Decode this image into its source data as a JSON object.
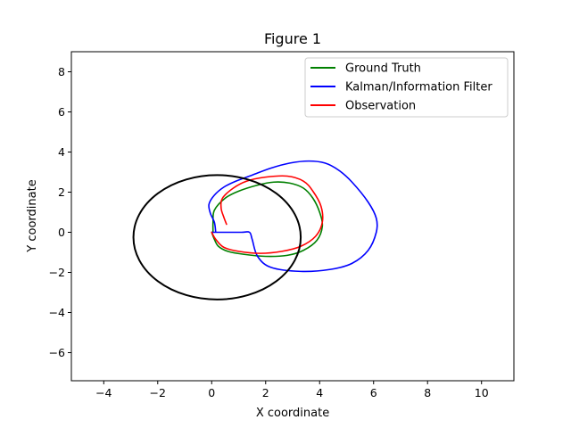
{
  "chart_data": {
    "type": "line",
    "title": "Figure 1",
    "xlabel": "X coordinate",
    "ylabel": "Y coordinate",
    "xlim": [
      -5.2,
      11.2
    ],
    "ylim": [
      -7.4,
      9.0
    ],
    "xticks": [
      -4,
      -2,
      0,
      2,
      4,
      6,
      8,
      10
    ],
    "yticks": [
      -6,
      -4,
      -2,
      0,
      2,
      4,
      6,
      8
    ],
    "grid": false,
    "legend_position": "top-right",
    "series": [
      {
        "name": "Ground Truth",
        "color": "#008000",
        "points": [
          [
            0.0,
            0.0
          ],
          [
            0.1,
            -0.35
          ],
          [
            0.25,
            -0.7
          ],
          [
            0.6,
            -0.95
          ],
          [
            1.2,
            -1.1
          ],
          [
            2.0,
            -1.2
          ],
          [
            2.8,
            -1.15
          ],
          [
            3.4,
            -0.9
          ],
          [
            3.9,
            -0.4
          ],
          [
            4.1,
            0.3
          ],
          [
            4.0,
            1.0
          ],
          [
            3.75,
            1.7
          ],
          [
            3.4,
            2.2
          ],
          [
            2.9,
            2.45
          ],
          [
            2.3,
            2.5
          ],
          [
            1.7,
            2.35
          ],
          [
            1.0,
            2.05
          ],
          [
            0.5,
            1.7
          ],
          [
            0.1,
            1.1
          ],
          [
            0.05,
            0.5
          ],
          [
            0.05,
            0.0
          ]
        ]
      },
      {
        "name": "Kalman/Information Filter",
        "color": "#0000ff",
        "points": [
          [
            0.0,
            0.0
          ],
          [
            0.5,
            0.0
          ],
          [
            1.1,
            0.0
          ],
          [
            1.4,
            0.0
          ],
          [
            1.5,
            -0.35
          ],
          [
            1.7,
            -1.2
          ],
          [
            2.2,
            -1.75
          ],
          [
            3.3,
            -1.95
          ],
          [
            4.4,
            -1.85
          ],
          [
            5.2,
            -1.55
          ],
          [
            5.8,
            -0.9
          ],
          [
            6.1,
            0.0
          ],
          [
            6.1,
            0.7
          ],
          [
            5.8,
            1.5
          ],
          [
            5.2,
            2.5
          ],
          [
            4.7,
            3.1
          ],
          [
            4.2,
            3.45
          ],
          [
            3.6,
            3.55
          ],
          [
            2.9,
            3.45
          ],
          [
            2.2,
            3.2
          ],
          [
            1.5,
            2.85
          ],
          [
            0.9,
            2.55
          ],
          [
            0.45,
            2.25
          ],
          [
            0.1,
            1.85
          ],
          [
            -0.1,
            1.4
          ],
          [
            -0.05,
            0.95
          ],
          [
            0.1,
            0.5
          ],
          [
            0.15,
            0.0
          ]
        ]
      },
      {
        "name": "Observation",
        "color": "#ff0000",
        "points": [
          [
            0.0,
            0.0
          ],
          [
            0.15,
            -0.35
          ],
          [
            0.45,
            -0.75
          ],
          [
            1.0,
            -0.95
          ],
          [
            1.8,
            -1.05
          ],
          [
            2.6,
            -0.95
          ],
          [
            3.3,
            -0.7
          ],
          [
            3.85,
            -0.2
          ],
          [
            4.1,
            0.5
          ],
          [
            4.05,
            1.3
          ],
          [
            3.75,
            2.05
          ],
          [
            3.4,
            2.55
          ],
          [
            2.8,
            2.8
          ],
          [
            2.0,
            2.75
          ],
          [
            1.3,
            2.55
          ],
          [
            0.8,
            2.2
          ],
          [
            0.4,
            1.7
          ],
          [
            0.35,
            1.2
          ],
          [
            0.45,
            0.75
          ],
          [
            0.55,
            0.4
          ]
        ]
      },
      {
        "color": "#000000",
        "shape": "circle",
        "center": [
          0.2,
          -0.25
        ],
        "radius": 3.1
      }
    ]
  }
}
